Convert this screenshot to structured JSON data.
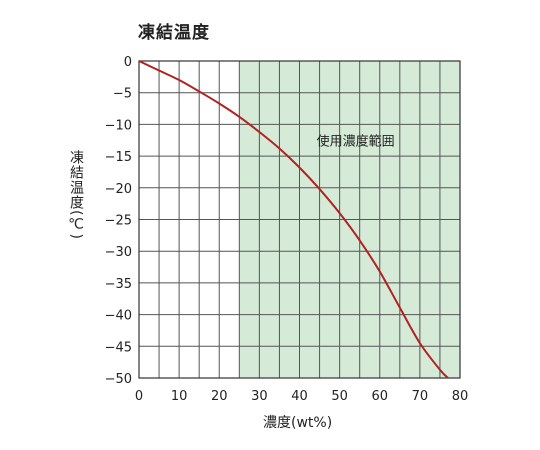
{
  "chart_data": {
    "type": "line",
    "title": "凍結温度",
    "xlabel": "濃度(wt%)",
    "ylabel": "凍結温度(℃)",
    "xlim": [
      0,
      80
    ],
    "ylim": [
      -50,
      0
    ],
    "xticks": [
      0,
      10,
      20,
      30,
      40,
      50,
      60,
      70,
      80
    ],
    "yticks": [
      0,
      -5,
      -10,
      -15,
      -20,
      -25,
      -30,
      -35,
      -40,
      -45,
      -50
    ],
    "grid": true,
    "shaded_region": {
      "x_from": 25,
      "x_to": 80,
      "label": "使用濃度範囲",
      "color": "#d5ead7"
    },
    "series": [
      {
        "color": "#b22222",
        "x": [
          0,
          5,
          10,
          15,
          20,
          25,
          30,
          35,
          40,
          45,
          50,
          55,
          60,
          65,
          70,
          75,
          77
        ],
        "y": [
          0,
          -1.5,
          -3,
          -4.8,
          -6.7,
          -8.8,
          -11.2,
          -13.8,
          -16.8,
          -20.2,
          -24,
          -28.3,
          -33.2,
          -38.9,
          -44.5,
          -48.7,
          -50
        ]
      }
    ]
  }
}
